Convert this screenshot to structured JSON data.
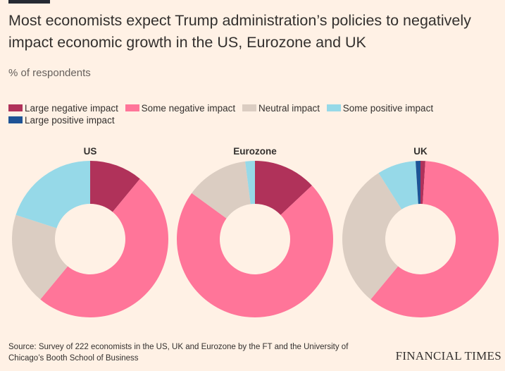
{
  "header": {
    "title": "Most economists expect Trump administration’s policies to negatively impact economic growth in the US, Eurozone and UK",
    "subtitle": "% of respondents"
  },
  "legend": [
    {
      "label": "Large negative impact",
      "color": "#b0325a"
    },
    {
      "label": "Some negative impact",
      "color": "#ff7599"
    },
    {
      "label": "Neutral impact",
      "color": "#dbcdc2"
    },
    {
      "label": "Some positive impact",
      "color": "#96d9e8"
    },
    {
      "label": "Large positive impact",
      "color": "#1e5396"
    }
  ],
  "chart_data": [
    {
      "type": "pie",
      "variant": "donut",
      "title": "US",
      "categories": [
        "Large negative impact",
        "Some negative impact",
        "Neutral impact",
        "Some positive impact",
        "Large positive impact"
      ],
      "values": [
        11,
        50,
        19,
        20,
        0
      ]
    },
    {
      "type": "pie",
      "variant": "donut",
      "title": "Eurozone",
      "categories": [
        "Large negative impact",
        "Some negative impact",
        "Neutral impact",
        "Some positive impact",
        "Large positive impact"
      ],
      "values": [
        13,
        72,
        13,
        2,
        0
      ]
    },
    {
      "type": "pie",
      "variant": "donut",
      "title": "UK",
      "categories": [
        "Large negative impact",
        "Some negative impact",
        "Neutral impact",
        "Some positive impact",
        "Large positive impact"
      ],
      "values": [
        1,
        60,
        30,
        8,
        1
      ]
    }
  ],
  "footer": {
    "source": "Source: Survey of 222 economists in the US, UK and Eurozone by the FT and the University of Chicago’s Booth School of Business",
    "brand": "FINANCIAL TIMES"
  }
}
